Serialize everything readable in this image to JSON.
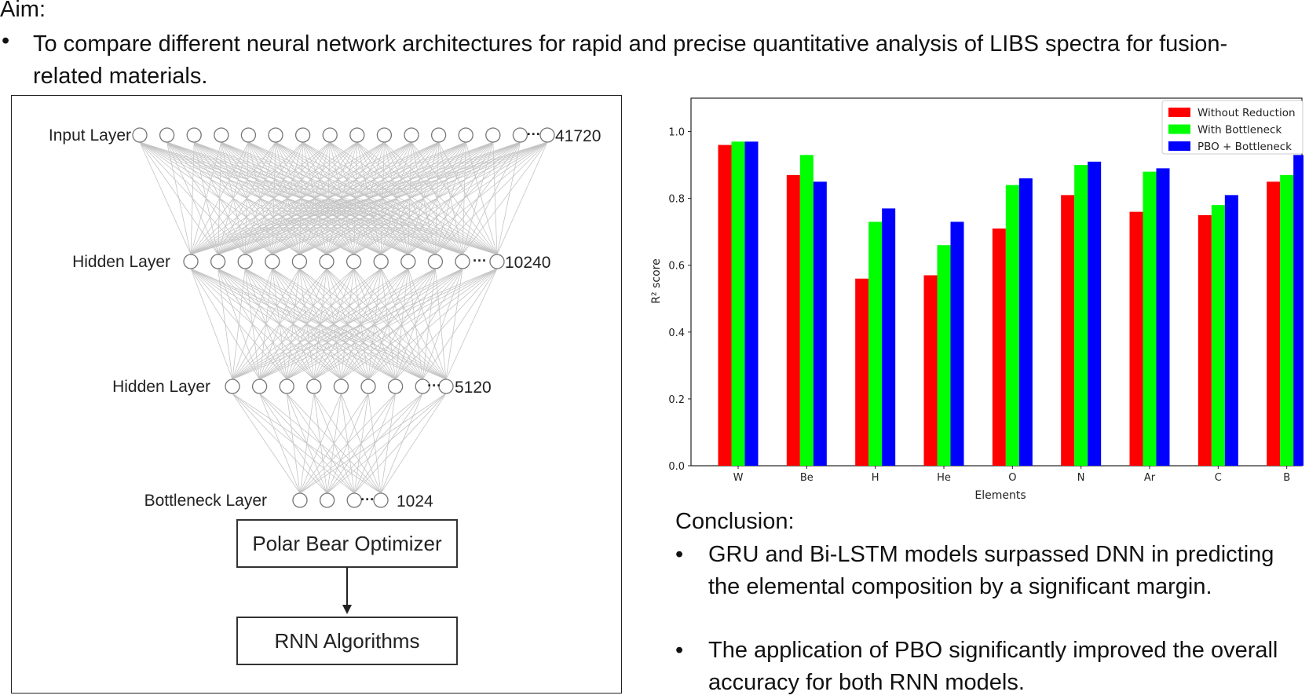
{
  "aim": {
    "title": "Aim:",
    "bullet": "•",
    "text": "To compare different neural network architectures for rapid and precise quantitative analysis of LIBS spectra for fusion-related materials."
  },
  "network": {
    "layers": [
      {
        "label": "Input Layer",
        "size": "41720"
      },
      {
        "label": "Hidden  Layer",
        "size": "10240"
      },
      {
        "label": "Hidden  Layer",
        "size": "5120"
      },
      {
        "label": "Bottleneck Layer",
        "size": "1024"
      }
    ],
    "ellipsis": "···",
    "optimizer_box": "Polar Bear Optimizer",
    "algorithm_box": "RNN Algorithms"
  },
  "chart_data": {
    "type": "bar",
    "categories": [
      "W",
      "Be",
      "H",
      "He",
      "O",
      "N",
      "Ar",
      "C",
      "B"
    ],
    "series": [
      {
        "name": "Without Reduction",
        "color": "#ff0000",
        "values": [
          0.96,
          0.87,
          0.56,
          0.57,
          0.71,
          0.81,
          0.76,
          0.75,
          0.85
        ]
      },
      {
        "name": "With Bottleneck",
        "color": "#00ff00",
        "values": [
          0.97,
          0.93,
          0.73,
          0.66,
          0.84,
          0.9,
          0.88,
          0.78,
          0.87
        ]
      },
      {
        "name": "PBO + Bottleneck",
        "color": "#0000ff",
        "values": [
          0.97,
          0.85,
          0.77,
          0.73,
          0.86,
          0.91,
          0.89,
          0.81,
          0.93
        ]
      }
    ],
    "xlabel": "Elements",
    "ylabel": "R² score",
    "ylim": [
      0,
      1.1
    ],
    "yticks": [
      "0.0",
      "0.2",
      "0.4",
      "0.6",
      "0.8",
      "1.0"
    ],
    "legend_position": "top-right",
    "grid": false
  },
  "conclusion": {
    "title": "Conclusion:",
    "items": [
      "GRU and Bi-LSTM models surpassed DNN in predicting the elemental composition by a significant margin.",
      "The application of PBO significantly improved the overall accuracy for both RNN models."
    ],
    "bullet": "•"
  }
}
